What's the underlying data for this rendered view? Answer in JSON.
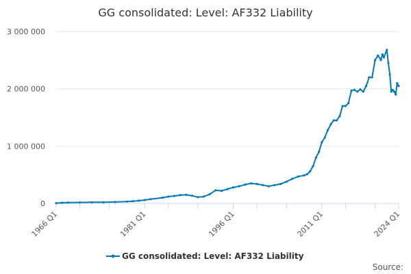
{
  "chart_data": {
    "type": "line",
    "title": "GG consolidated: Level: AF332 Liability",
    "xlabel": "",
    "ylabel": "",
    "ylim": [
      0,
      3000000
    ],
    "yticks": [
      0,
      1000000,
      2000000,
      3000000
    ],
    "ytick_labels": [
      "0",
      "1 000 000",
      "2 000 000",
      "3 000 000"
    ],
    "xlim": [
      1966.0,
      2024.0
    ],
    "xticks": [
      1966,
      1981,
      1996,
      2011,
      2024
    ],
    "xtick_labels": [
      "1966 Q1",
      "1981 Q1",
      "1996 Q1",
      "2011 Q1",
      "2024 Q1"
    ],
    "x_minor_ticks": [
      1970,
      1975,
      1985,
      1990,
      2000,
      2005,
      2015,
      2020
    ],
    "grid": "horizontal",
    "legend_position": "bottom",
    "color": "#0079b8",
    "series": [
      {
        "name": "GG consolidated: Level: AF332 Liability",
        "x": [
          1966.0,
          1967.0,
          1968.0,
          1970.0,
          1972.0,
          1974.0,
          1976.0,
          1978.0,
          1979.0,
          1980.0,
          1981.0,
          1982.0,
          1984.0,
          1985.0,
          1986.0,
          1987.0,
          1988.0,
          1989.0,
          1990.0,
          1991.0,
          1992.0,
          1993.0,
          1994.0,
          1995.0,
          1996.0,
          1997.0,
          1998.0,
          1999.0,
          2000.0,
          2001.0,
          2002.0,
          2003.0,
          2004.0,
          2005.0,
          2006.0,
          2007.0,
          2008.0,
          2008.5,
          2009.0,
          2009.5,
          2010.0,
          2010.5,
          2011.0,
          2011.5,
          2012.0,
          2012.5,
          2013.0,
          2013.5,
          2014.0,
          2014.5,
          2015.0,
          2015.5,
          2016.0,
          2016.5,
          2017.0,
          2017.5,
          2018.0,
          2018.5,
          2019.0,
          2019.5,
          2020.0,
          2020.5,
          2021.0,
          2021.25,
          2021.5,
          2022.0,
          2022.25,
          2022.5,
          2022.75,
          2023.0,
          2023.25,
          2023.5,
          2023.75,
          2024.0
        ],
        "y": [
          5000,
          12000,
          15000,
          18000,
          20000,
          22000,
          25000,
          32000,
          40000,
          48000,
          60000,
          75000,
          100000,
          120000,
          130000,
          145000,
          150000,
          135000,
          110000,
          120000,
          160000,
          230000,
          220000,
          250000,
          280000,
          300000,
          330000,
          350000,
          340000,
          320000,
          300000,
          320000,
          340000,
          380000,
          430000,
          470000,
          490000,
          510000,
          560000,
          650000,
          800000,
          900000,
          1070000,
          1150000,
          1280000,
          1380000,
          1450000,
          1450000,
          1520000,
          1700000,
          1700000,
          1750000,
          1970000,
          1980000,
          1950000,
          1990000,
          1950000,
          2050000,
          2200000,
          2200000,
          2500000,
          2580000,
          2500000,
          2600000,
          2550000,
          2680000,
          2450000,
          2250000,
          1950000,
          1980000,
          1950000,
          1900000,
          2100000,
          2050000
        ]
      }
    ]
  },
  "source_label": "Source:"
}
